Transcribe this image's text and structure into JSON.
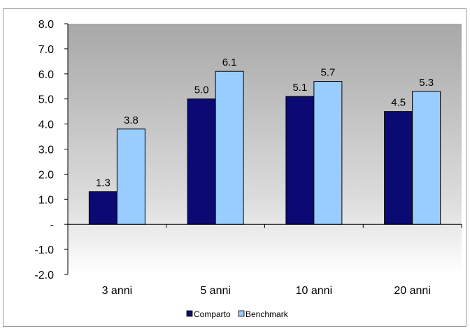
{
  "header_fragment": "",
  "chart_data": {
    "type": "bar",
    "categories": [
      "3 anni",
      "5 anni",
      "10 anni",
      "20 anni"
    ],
    "series": [
      {
        "name": "Comparto",
        "values": [
          1.3,
          5.0,
          5.1,
          4.5
        ],
        "color": "#0a0a72"
      },
      {
        "name": "Benchmark",
        "values": [
          3.8,
          6.1,
          5.7,
          5.3
        ],
        "color": "#99ccff"
      }
    ],
    "data_labels": [
      [
        "1.3",
        "5.0",
        "5.1",
        "4.5"
      ],
      [
        "3.8",
        "6.1",
        "5.7",
        "5.3"
      ]
    ],
    "y_ticks": [
      "8.0",
      "7.0",
      "6.0",
      "5.0",
      "4.0",
      "3.0",
      "2.0",
      "1.0",
      "-",
      "-1.0",
      "-2.0"
    ],
    "ylim": [
      -2,
      8
    ],
    "legend_position": "bottom",
    "plot_background": "gray gradient top to white",
    "grid": false,
    "title": "",
    "xlabel": "",
    "ylabel": ""
  }
}
